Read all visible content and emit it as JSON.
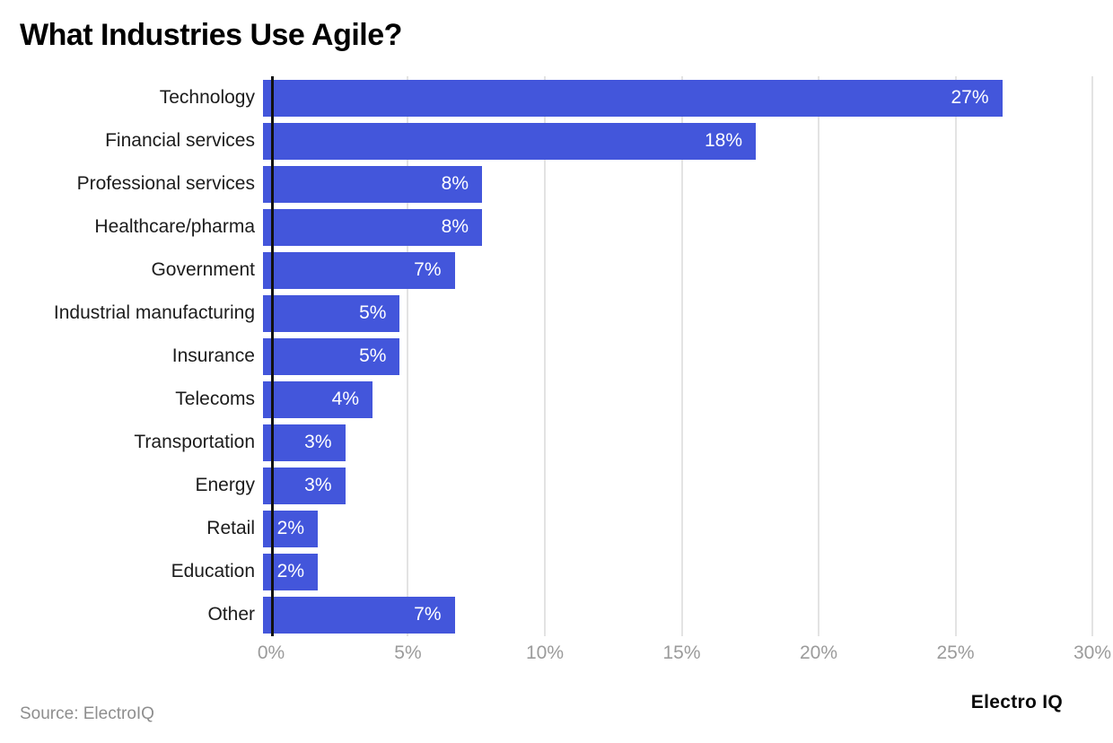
{
  "title": "What Industries Use Agile?",
  "chart_data": {
    "type": "bar",
    "orientation": "horizontal",
    "title": "What Industries Use Agile?",
    "categories": [
      "Technology",
      "Financial services",
      "Professional services",
      "Healthcare/pharma",
      "Government",
      "Industrial manufacturing",
      "Insurance",
      "Telecoms",
      "Transportation",
      "Energy",
      "Retail",
      "Education",
      "Other"
    ],
    "values": [
      27,
      18,
      8,
      8,
      7,
      5,
      5,
      4,
      3,
      3,
      2,
      2,
      7
    ],
    "value_labels": [
      "27%",
      "18%",
      "8%",
      "8%",
      "7%",
      "5%",
      "5%",
      "4%",
      "3%",
      "3%",
      "2%",
      "2%",
      "7%"
    ],
    "xlabel": "",
    "ylabel": "",
    "xlim": [
      0,
      30
    ],
    "x_tick_values": [
      0,
      5,
      10,
      15,
      20,
      25,
      30
    ],
    "x_tick_labels": [
      "0%",
      "5%",
      "10%",
      "15%",
      "20%",
      "25%",
      "30%"
    ],
    "grid": "vertical",
    "legend": "none",
    "colors": {
      "bar": "#4356db",
      "value_label": "#ffffff",
      "axis_line": "#111111",
      "gridline": "#e3e3e3",
      "tick_label": "#9b9b9b",
      "category_label": "#1c1c1c"
    }
  },
  "footer": {
    "source": "Source: ElectroIQ",
    "brand": "Electro IQ"
  }
}
